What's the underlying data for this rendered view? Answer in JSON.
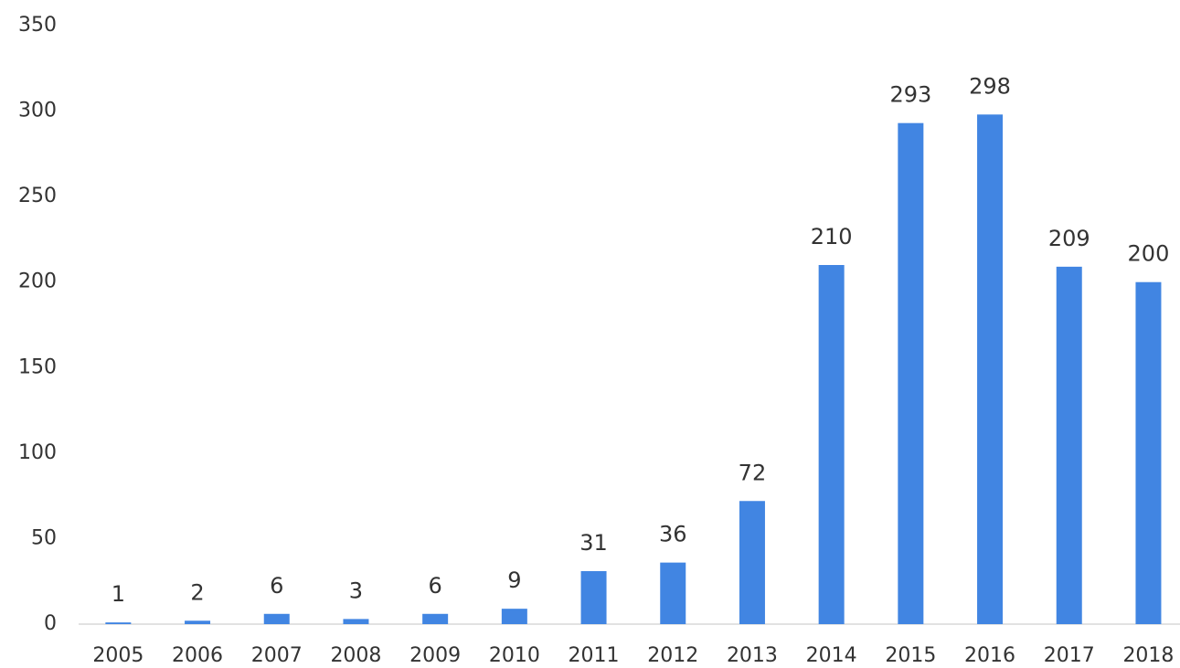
{
  "chart_data": {
    "type": "bar",
    "categories": [
      "2005",
      "2006",
      "2007",
      "2008",
      "2009",
      "2010",
      "2011",
      "2012",
      "2013",
      "2014",
      "2015",
      "2016",
      "2017",
      "2018"
    ],
    "values": [
      1,
      2,
      6,
      3,
      6,
      9,
      31,
      36,
      72,
      210,
      293,
      298,
      209,
      200
    ],
    "color": "#4185e2",
    "ylim": [
      0,
      350
    ],
    "yticks": [
      0,
      50,
      100,
      150,
      200,
      250,
      300,
      350
    ],
    "grid": false,
    "data_labels": true
  }
}
